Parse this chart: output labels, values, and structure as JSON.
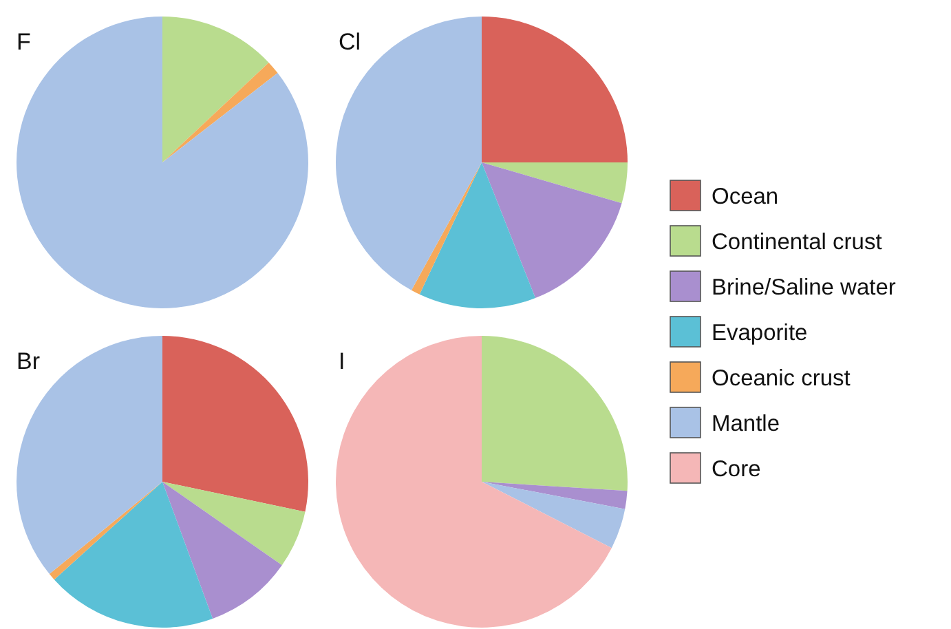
{
  "chart_data": [
    {
      "type": "pie",
      "title": "F",
      "categories": [
        null,
        null,
        null
      ],
      "values": [
        13,
        1.5,
        85.5
      ],
      "colors": [
        "#b9dc8e",
        "#f6a95a",
        "#a9c2e6"
      ]
    },
    {
      "type": "pie",
      "title": "Cl",
      "categories": [
        null,
        null,
        null,
        null,
        null,
        null
      ],
      "values": [
        25,
        4.5,
        14.5,
        13,
        1,
        42
      ],
      "colors": [
        "#d9625a",
        "#b9dc8e",
        "#a98fcf",
        "#5bc0d6",
        "#f6a95a",
        "#a9c2e6"
      ]
    },
    {
      "type": "pie",
      "title": "Br",
      "categories": [
        null,
        null,
        null,
        null,
        null,
        null
      ],
      "values": [
        28.3,
        6.4,
        9.7,
        18.9,
        0.8,
        35.9
      ],
      "colors": [
        "#d9625a",
        "#b9dc8e",
        "#a98fcf",
        "#5bc0d6",
        "#f6a95a",
        "#a9c2e6"
      ]
    },
    {
      "type": "pie",
      "title": "I",
      "categories": [
        "Ocean",
        "Continental crust",
        "Brine/Saline water",
        "Evaporite",
        "Oceanic crust",
        "Mantle",
        "Core"
      ],
      "values": [
        0,
        26,
        2,
        0,
        0,
        4.5,
        67.5
      ],
      "colors": [
        "#d9625a",
        "#b9dc8e",
        "#a98fcf",
        "#5bc0d6",
        "#f6a95a",
        "#a9c2e6",
        "#f5b7b7"
      ],
      "legend": "right"
    }
  ]
}
